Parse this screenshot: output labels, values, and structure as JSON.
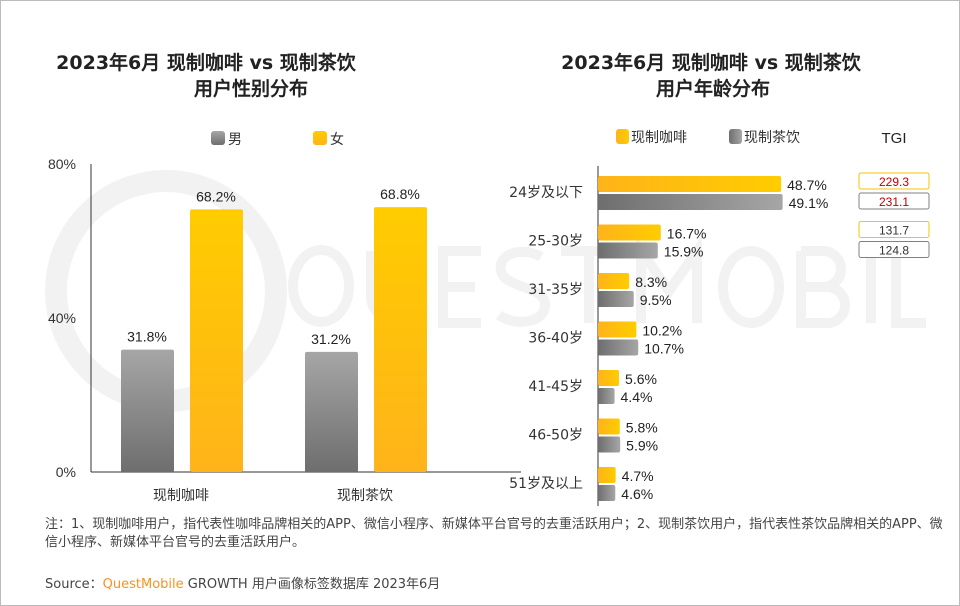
{
  "watermark": "QUESTMOBILE",
  "colors": {
    "coffee": "#ffc000",
    "tea": "#808080",
    "female": "#ffc000",
    "male": "#808080",
    "tgi_high": "#c00000",
    "tgi_normal": "#333333"
  },
  "chart_data": [
    {
      "type": "bar",
      "title": "2023年6月 现制咖啡 vs 现制茶饮",
      "subtitle": "用户性别分布",
      "categories": [
        "现制咖啡",
        "现制茶饮"
      ],
      "series": [
        {
          "name": "男",
          "values": [
            31.8,
            31.2
          ]
        },
        {
          "name": "女",
          "values": [
            68.2,
            68.8
          ]
        }
      ],
      "ylim": [
        0,
        80
      ],
      "yticks": [
        "0%",
        "40%",
        "80%"
      ],
      "legend": "top",
      "grid": false,
      "labels": [
        [
          "31.8%",
          "31.2%"
        ],
        [
          "68.2%",
          "68.8%"
        ]
      ]
    },
    {
      "type": "bar",
      "orientation": "horizontal",
      "title": "2023年6月 现制咖啡 vs 现制茶饮",
      "subtitle": "用户年龄分布",
      "categories": [
        "24岁及以下",
        "25-30岁",
        "31-35岁",
        "36-40岁",
        "41-45岁",
        "46-50岁",
        "51岁及以上"
      ],
      "series": [
        {
          "name": "现制咖啡",
          "values": [
            48.7,
            16.7,
            8.3,
            10.2,
            5.6,
            5.8,
            4.7
          ]
        },
        {
          "name": "现制茶饮",
          "values": [
            49.1,
            15.9,
            9.5,
            10.7,
            4.4,
            5.9,
            4.6
          ]
        }
      ],
      "legend": "top",
      "grid": false,
      "tgi_header": "TGI",
      "tgi": [
        {
          "category": "24岁及以下",
          "coffee": "229.3",
          "tea": "231.1"
        },
        {
          "category": "25-30岁",
          "coffee": "131.7",
          "tea": "124.8"
        }
      ]
    }
  ],
  "note": "注：1、现制咖啡用户，指代表性咖啡品牌相关的APP、微信小程序、新媒体平台官号的去重活跃用户；2、现制茶饮用户，指代表性茶饮品牌相关的APP、微信小程序、新媒体平台官号的去重活跃用户。",
  "source": {
    "label": "Source：",
    "brand": "QuestMobile",
    "text": " GROWTH 用户画像标签数据库 2023年6月"
  }
}
